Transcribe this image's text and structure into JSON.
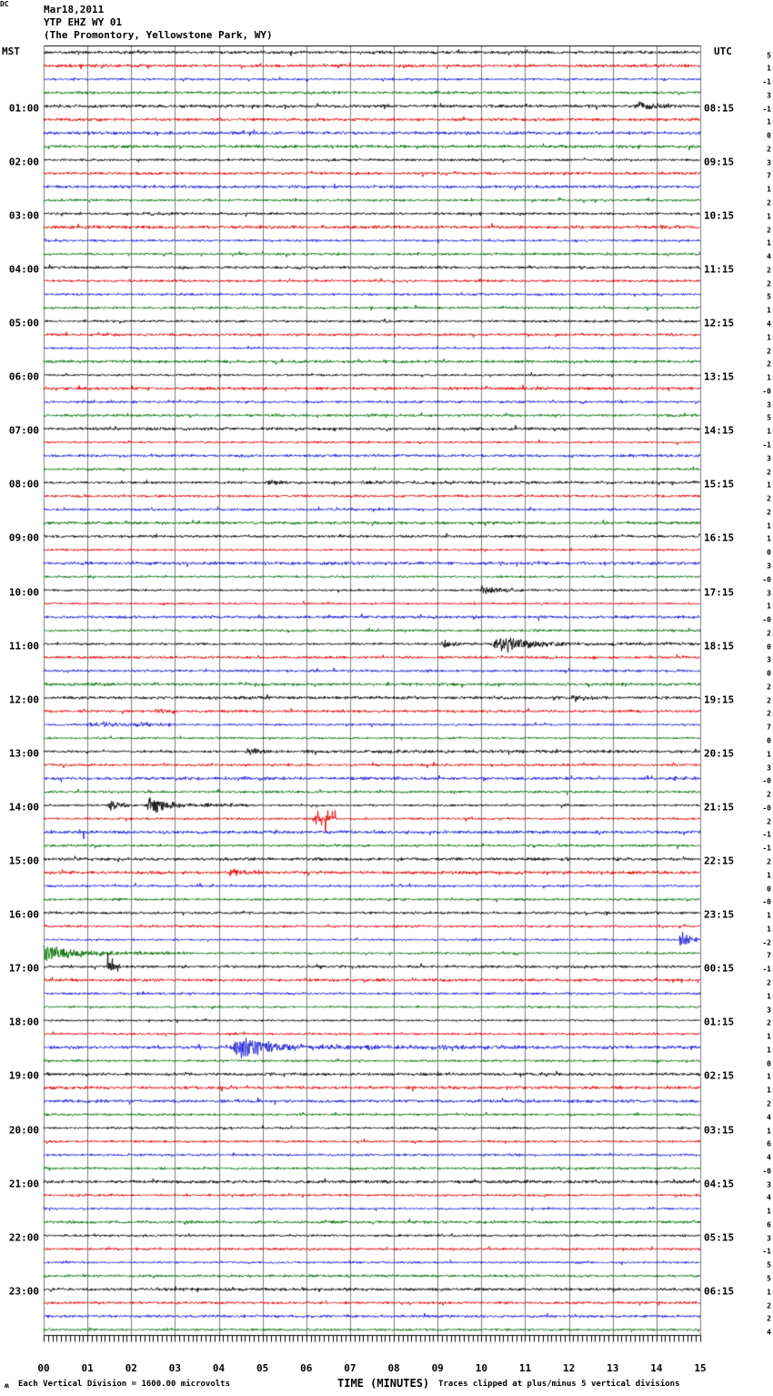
{
  "header": {
    "date": "Mar18,2011",
    "station": "YTP EHZ WY 01",
    "location": "(The Promontory, Yellowstone Park, WY)"
  },
  "axes": {
    "left_label": "MST",
    "right_label": "UTC",
    "dc_label": "DC",
    "x_title": "TIME (MINUTES)",
    "x_ticks": [
      "00",
      "01",
      "02",
      "03",
      "04",
      "05",
      "06",
      "07",
      "08",
      "09",
      "10",
      "11",
      "12",
      "13",
      "14",
      "15"
    ]
  },
  "footer": {
    "glyph": "ʍ",
    "scale_note": "Each Vertical Division = 1600.00 microvolts",
    "clip_note": "Traces clipped at plus/minus 5 vertical divisions"
  },
  "chart_data": {
    "type": "line",
    "subtype": "helicorder-seismogram",
    "title": "YTP EHZ WY 01 (The Promontory, Yellowstone Park, WY) Mar18,2011",
    "xlabel": "TIME (MINUTES)",
    "x_range": [
      0,
      15
    ],
    "rows": 96,
    "minutes_per_row": 15,
    "grid": true,
    "grid_color": "#7d7d7d",
    "trace_colors_cycle": [
      "black",
      "red",
      "blue",
      "green"
    ],
    "palette": {
      "black": "#000000",
      "red": "#e00000",
      "blue": "#1a1ad6",
      "green": "#007200"
    },
    "noise_seed": 20110318,
    "base_noise_amp": 1.6,
    "clip_divisions": 5,
    "left_time_labels": [
      {
        "row": 4,
        "label": "01:00"
      },
      {
        "row": 8,
        "label": "02:00"
      },
      {
        "row": 12,
        "label": "03:00"
      },
      {
        "row": 16,
        "label": "04:00"
      },
      {
        "row": 20,
        "label": "05:00"
      },
      {
        "row": 24,
        "label": "06:00"
      },
      {
        "row": 28,
        "label": "07:00"
      },
      {
        "row": 32,
        "label": "08:00"
      },
      {
        "row": 36,
        "label": "09:00"
      },
      {
        "row": 40,
        "label": "10:00"
      },
      {
        "row": 44,
        "label": "11:00"
      },
      {
        "row": 48,
        "label": "12:00"
      },
      {
        "row": 52,
        "label": "13:00"
      },
      {
        "row": 56,
        "label": "14:00"
      },
      {
        "row": 60,
        "label": "15:00"
      },
      {
        "row": 64,
        "label": "16:00"
      },
      {
        "row": 68,
        "label": "17:00"
      },
      {
        "row": 72,
        "label": "18:00"
      },
      {
        "row": 76,
        "label": "19:00"
      },
      {
        "row": 80,
        "label": "20:00"
      },
      {
        "row": 84,
        "label": "21:00"
      },
      {
        "row": 88,
        "label": "22:00"
      },
      {
        "row": 92,
        "label": "23:00"
      }
    ],
    "right_time_labels": [
      {
        "row": 4,
        "label": "08:15"
      },
      {
        "row": 8,
        "label": "09:15"
      },
      {
        "row": 12,
        "label": "10:15"
      },
      {
        "row": 16,
        "label": "11:15"
      },
      {
        "row": 20,
        "label": "12:15"
      },
      {
        "row": 24,
        "label": "13:15"
      },
      {
        "row": 28,
        "label": "14:15"
      },
      {
        "row": 32,
        "label": "15:15"
      },
      {
        "row": 36,
        "label": "16:15"
      },
      {
        "row": 40,
        "label": "17:15"
      },
      {
        "row": 44,
        "label": "18:15"
      },
      {
        "row": 48,
        "label": "19:15"
      },
      {
        "row": 52,
        "label": "20:15"
      },
      {
        "row": 56,
        "label": "21:15"
      },
      {
        "row": 60,
        "label": "22:15"
      },
      {
        "row": 64,
        "label": "23:15"
      },
      {
        "row": 68,
        "label": "00:15"
      },
      {
        "row": 72,
        "label": "01:15"
      },
      {
        "row": 76,
        "label": "02:15"
      },
      {
        "row": 80,
        "label": "03:15"
      },
      {
        "row": 84,
        "label": "04:15"
      },
      {
        "row": 88,
        "label": "05:15"
      },
      {
        "row": 92,
        "label": "06:15"
      }
    ],
    "dc_values": [
      "5",
      "1",
      "-1",
      "3",
      "-1",
      "1",
      "0",
      "2",
      "3",
      "7",
      "1",
      "2",
      "1",
      "2",
      "1",
      "4",
      "2",
      "2",
      "5",
      "1",
      "4",
      "1",
      "2",
      "2",
      "1",
      "-0",
      "3",
      "5",
      "1",
      "-1",
      "3",
      "2",
      "1",
      "2",
      "2",
      "1",
      "1",
      "0",
      "3",
      "-0",
      "3",
      "1",
      "-0",
      "2",
      "0",
      "3",
      "0",
      "2",
      "2",
      "2",
      "7",
      "0",
      "1",
      "3",
      "-0",
      "2",
      "-0",
      "2",
      "-1",
      "-1",
      "2",
      "1",
      "0",
      "-0",
      "1",
      "1",
      "-2",
      "7",
      "-1",
      "2",
      "1",
      "3",
      "2",
      "1",
      "1",
      "0",
      "1",
      "1",
      "2",
      "4",
      "1",
      "6",
      "4",
      "-0",
      "3",
      "4",
      "1",
      "6",
      "3",
      "-1",
      "5",
      "5",
      "1",
      "2",
      "2",
      "4"
    ],
    "events": [
      {
        "row": 4,
        "t0": 13.45,
        "t1": 15,
        "amp": 4.5,
        "mode": "burst"
      },
      {
        "row": 12,
        "t0": 2.3,
        "t1": 3.3,
        "amp": 2,
        "mode": "burst"
      },
      {
        "row": 27,
        "t0": 5.25,
        "t1": 5.7,
        "amp": 2.5,
        "mode": "burst"
      },
      {
        "row": 32,
        "t0": 5.0,
        "t1": 6.2,
        "amp": 3.5,
        "mode": "burst"
      },
      {
        "row": 32,
        "t0": 6.2,
        "t1": 15,
        "amp": 1.0,
        "mode": "flat"
      },
      {
        "row": 32,
        "t0": 14.3,
        "t1": 15,
        "amp": 2.2,
        "mode": "burst"
      },
      {
        "row": 40,
        "t0": 9.9,
        "t1": 11.8,
        "amp": 3.5,
        "mode": "burst"
      },
      {
        "row": 40,
        "t0": 10.0,
        "t1": 10.25,
        "amp": 6,
        "mode": "spike"
      },
      {
        "row": 40,
        "t0": 11.5,
        "t1": 11.7,
        "amp": 4,
        "mode": "spike"
      },
      {
        "row": 42,
        "t0": 11.3,
        "t1": 11.5,
        "amp": 2.5,
        "mode": "spike"
      },
      {
        "row": 44,
        "t0": 9.05,
        "t1": 10.1,
        "amp": 5,
        "mode": "burst"
      },
      {
        "row": 44,
        "t0": 10.15,
        "t1": 12.9,
        "amp": 8,
        "mode": "burst"
      },
      {
        "row": 44,
        "t0": 12.9,
        "t1": 15,
        "amp": 1.5,
        "mode": "flat"
      },
      {
        "row": 48,
        "t0": 11.9,
        "t1": 13.7,
        "amp": 2.8,
        "mode": "burst"
      },
      {
        "row": 49,
        "t0": 2.55,
        "t1": 3.3,
        "amp": 3,
        "mode": "burst"
      },
      {
        "row": 50,
        "t0": 1.0,
        "t1": 2.9,
        "amp": 2.2,
        "mode": "flat"
      },
      {
        "row": 52,
        "t0": 4.55,
        "t1": 6.0,
        "amp": 4,
        "mode": "burst"
      },
      {
        "row": 52,
        "t0": 6.0,
        "t1": 15,
        "amp": 1.2,
        "mode": "flat"
      },
      {
        "row": 54,
        "t0": 14.35,
        "t1": 14.95,
        "amp": 2.5,
        "mode": "burst"
      },
      {
        "row": 56,
        "t0": 1.45,
        "t1": 2.25,
        "amp": 6,
        "mode": "burst"
      },
      {
        "row": 56,
        "t0": 2.3,
        "t1": 3.4,
        "amp": 12,
        "mode": "burst"
      },
      {
        "row": 56,
        "t0": 3.4,
        "t1": 4.8,
        "amp": 1.8,
        "mode": "flat"
      },
      {
        "row": 57,
        "t0": 6.1,
        "t1": 6.7,
        "amp": 9,
        "mode": "spike"
      },
      {
        "row": 58,
        "t0": 0.75,
        "t1": 0.95,
        "amp": 4,
        "mode": "spike"
      },
      {
        "row": 60,
        "t0": 11.85,
        "t1": 12.05,
        "amp": 5,
        "mode": "spike"
      },
      {
        "row": 61,
        "t0": 4.2,
        "t1": 5.1,
        "amp": 4,
        "mode": "burst"
      },
      {
        "row": 65,
        "t0": 0,
        "t1": 15,
        "amp": 0.7,
        "mode": "flat"
      },
      {
        "row": 66,
        "t0": 14.5,
        "t1": 15,
        "amp": 13,
        "mode": "burst"
      },
      {
        "row": 67,
        "t0": 0,
        "t1": 1.8,
        "amp": 9,
        "mode": "onset"
      },
      {
        "row": 67,
        "t0": 1.8,
        "t1": 3.2,
        "amp": 1.5,
        "mode": "flat"
      },
      {
        "row": 68,
        "t0": 1.45,
        "t1": 1.75,
        "amp": 12,
        "mode": "spike"
      },
      {
        "row": 74,
        "t0": 4.25,
        "t1": 6.3,
        "amp": 13,
        "mode": "burst"
      },
      {
        "row": 74,
        "t0": 6.3,
        "t1": 15,
        "amp": 2.2,
        "mode": "onset"
      }
    ]
  }
}
